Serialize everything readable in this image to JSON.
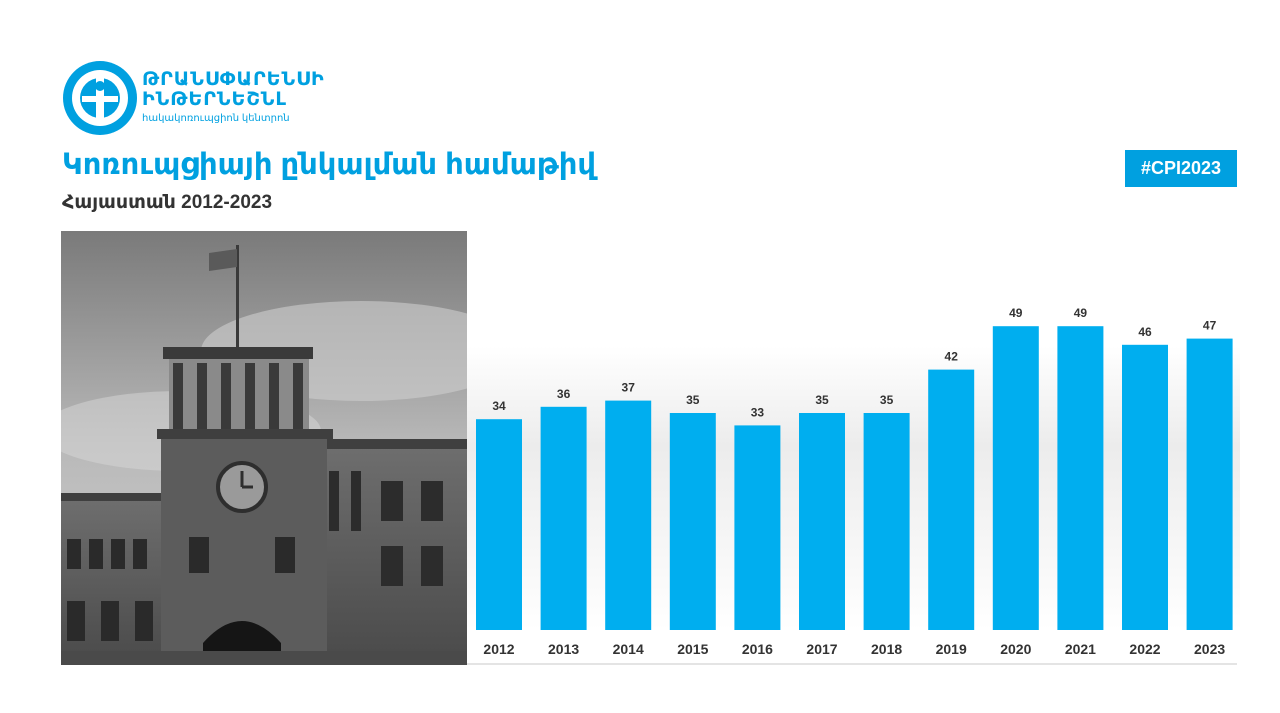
{
  "header": {
    "logo_line1": "ԹՐԱՆՍՓԱՐԵՆՍԻ",
    "logo_line2": "ԻՆԹԵՐՆԵՇՆԼ",
    "logo_line3": "հակակոռուպցիոն կենտրոն",
    "title": "Կոռուպցիայի ընկալման համաթիվ",
    "subtitle": "Հայաստան 2012-2023",
    "hashtag": "#CPI2023"
  },
  "colors": {
    "accent": "#00a0e0",
    "bar": "#00aeef",
    "text_dark": "#333333"
  },
  "chart_data": {
    "type": "bar",
    "title": "",
    "xlabel": "",
    "ylabel": "",
    "categories": [
      "2012",
      "2013",
      "2014",
      "2015",
      "2016",
      "2017",
      "2018",
      "2019",
      "2020",
      "2021",
      "2022",
      "2023"
    ],
    "values": [
      34,
      36,
      37,
      35,
      33,
      35,
      35,
      42,
      49,
      49,
      46,
      47
    ],
    "ylim": [
      0,
      55
    ],
    "grid": false,
    "legend": "none",
    "data_labels": true
  }
}
